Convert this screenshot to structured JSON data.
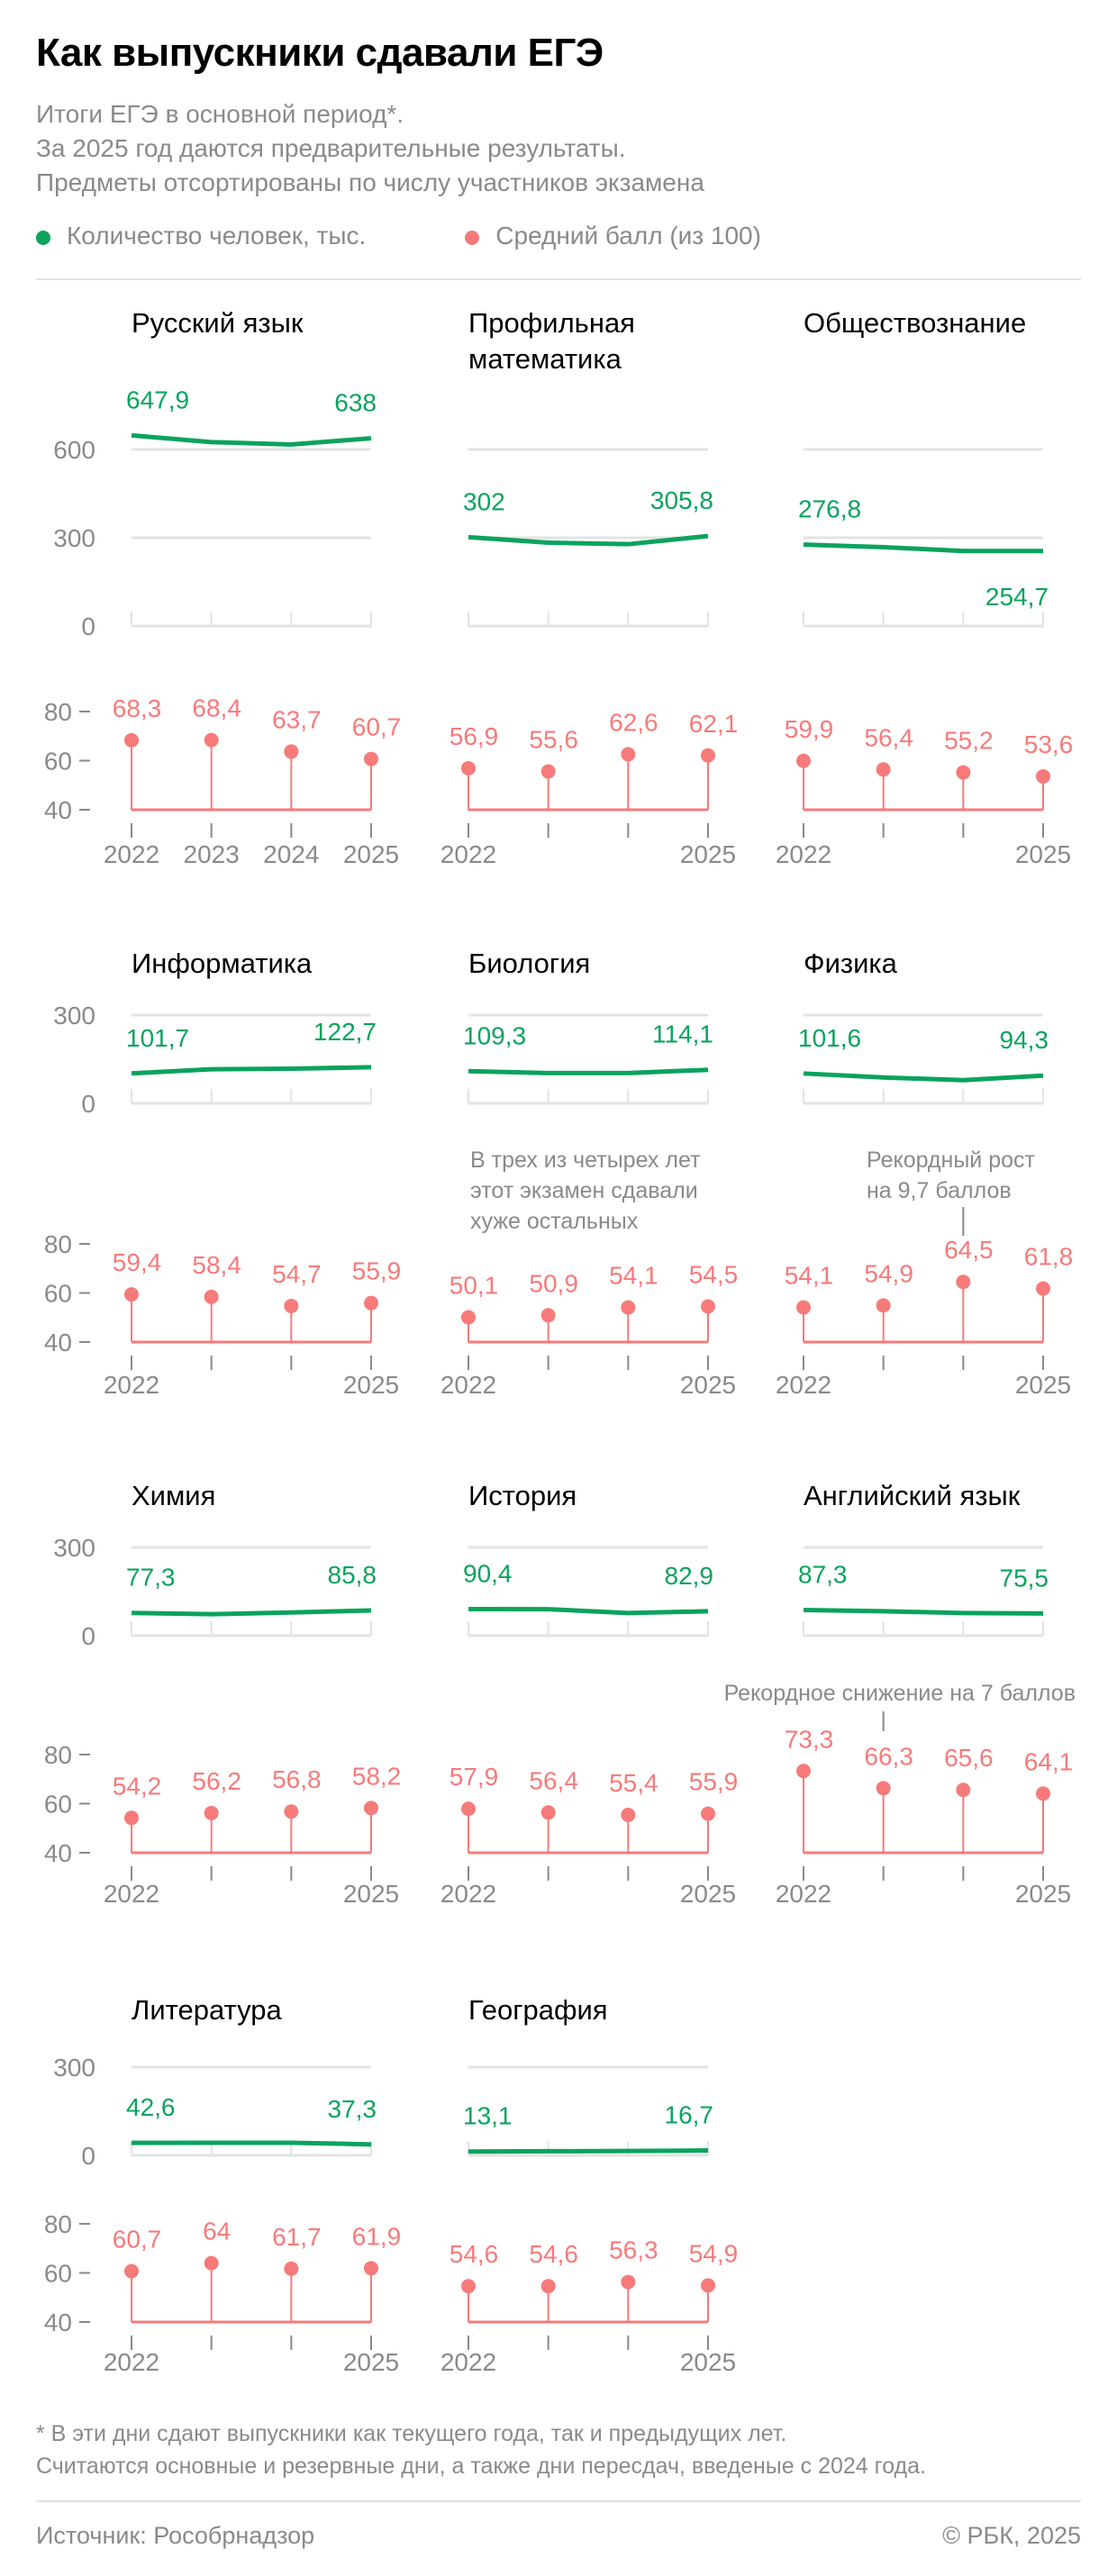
{
  "header": {
    "title": "Как выпускники сдавали ЕГЭ",
    "subtitle": [
      "Итоги ЕГЭ в основной период*.",
      "За 2025 год даются предварительные результаты.",
      "Предметы отсортированы по числу участников экзамена"
    ],
    "legend": [
      {
        "label": "Количество человек, тыс.",
        "color": "#0aa35d"
      },
      {
        "label": "Средний балл (из 100)",
        "color": "#f77a7a"
      }
    ]
  },
  "chart_data": {
    "type": "small-multiples (line + lollipop)",
    "years": [
      "2022",
      "2023",
      "2024",
      "2025"
    ],
    "count_axis": {
      "ticks_row1": [
        "0",
        "300",
        "600"
      ],
      "ticks": [
        "0",
        "300"
      ],
      "unit": "тыс. человек"
    },
    "score_axis": {
      "ticks": [
        "40",
        "60",
        "80"
      ],
      "ylim": [
        40,
        80
      ]
    },
    "subjects": [
      {
        "name": "Русский язык",
        "count": [
          647.9,
          625,
          617,
          638
        ],
        "count_labels": [
          "647,9",
          "638"
        ],
        "score": [
          68.3,
          68.4,
          63.7,
          60.7
        ],
        "score_labels": [
          "68,3",
          "68,4",
          "63,7",
          "60,7"
        ]
      },
      {
        "name": "Профильная математика",
        "name_lines": [
          "Профильная",
          "математика"
        ],
        "count": [
          302,
          283,
          278,
          305.8
        ],
        "count_labels": [
          "302",
          "305,8"
        ],
        "score": [
          56.9,
          55.6,
          62.6,
          62.1
        ],
        "score_labels": [
          "56,9",
          "55,6",
          "62,6",
          "62,1"
        ]
      },
      {
        "name": "Обществознание",
        "count": [
          276.8,
          268,
          255,
          254.7
        ],
        "count_labels": [
          "276,8",
          "254,7"
        ],
        "score": [
          59.9,
          56.4,
          55.2,
          53.6
        ],
        "score_labels": [
          "59,9",
          "56,4",
          "55,2",
          "53,6"
        ]
      },
      {
        "name": "Информатика",
        "count": [
          101.7,
          116,
          118,
          122.7
        ],
        "count_labels": [
          "101,7",
          "122,7"
        ],
        "score": [
          59.4,
          58.4,
          54.7,
          55.9
        ],
        "score_labels": [
          "59,4",
          "58,4",
          "54,7",
          "55,9"
        ]
      },
      {
        "name": "Биология",
        "count": [
          109.3,
          103,
          103,
          114.1
        ],
        "count_labels": [
          "109,3",
          "114,1"
        ],
        "score": [
          50.1,
          50.9,
          54.1,
          54.5
        ],
        "score_labels": [
          "50,1",
          "50,9",
          "54,1",
          "54,5"
        ],
        "annotation": [
          "В трех из четырех лет",
          "этот экзамен сдавали",
          "хуже остальных"
        ]
      },
      {
        "name": "Физика",
        "count": [
          101.6,
          88,
          79,
          94.3
        ],
        "count_labels": [
          "101,6",
          "94,3"
        ],
        "score": [
          54.1,
          54.9,
          64.5,
          61.8
        ],
        "score_labels": [
          "54,1",
          "54,9",
          "64,5",
          "61,8"
        ],
        "annotation": [
          "Рекордный рост",
          "на 9,7 баллов"
        ]
      },
      {
        "name": "Химия",
        "count": [
          77.3,
          73,
          79,
          85.8
        ],
        "count_labels": [
          "77,3",
          "85,8"
        ],
        "score": [
          54.2,
          56.2,
          56.8,
          58.2
        ],
        "score_labels": [
          "54,2",
          "56,2",
          "56,8",
          "58,2"
        ]
      },
      {
        "name": "История",
        "count": [
          90.4,
          90,
          77,
          82.9
        ],
        "count_labels": [
          "90,4",
          "82,9"
        ],
        "score": [
          57.9,
          56.4,
          55.4,
          55.9
        ],
        "score_labels": [
          "57,9",
          "56,4",
          "55,4",
          "55,9"
        ]
      },
      {
        "name": "Английский язык",
        "count": [
          87.3,
          83,
          77,
          75.5
        ],
        "count_labels": [
          "87,3",
          "75,5"
        ],
        "score": [
          73.3,
          66.3,
          65.6,
          64.1
        ],
        "score_labels": [
          "73,3",
          "66,3",
          "65,6",
          "64,1"
        ],
        "annotation": [
          "Рекордное снижение на 7 баллов"
        ]
      },
      {
        "name": "Литература",
        "count": [
          42.6,
          43,
          43,
          37.3
        ],
        "count_labels": [
          "42,6",
          "37,3"
        ],
        "score": [
          60.7,
          64,
          61.7,
          61.9
        ],
        "score_labels": [
          "60,7",
          "64",
          "61,7",
          "61,9"
        ]
      },
      {
        "name": "География",
        "count": [
          13.1,
          14,
          15,
          16.7
        ],
        "count_labels": [
          "13,1",
          "16,7"
        ],
        "score": [
          54.6,
          54.6,
          56.3,
          54.9
        ],
        "score_labels": [
          "54,6",
          "54,6",
          "56,3",
          "54,9"
        ]
      }
    ]
  },
  "footer": {
    "notes": [
      "* В эти дни сдают выпускники как текущего года, так и предыдущих лет.",
      "Считаются основные и резервные дни, а также дни пересдач, введеные с 2024 года."
    ],
    "source": "Источник: Рособрнадзор",
    "copyright": "© РБК, 2025"
  }
}
